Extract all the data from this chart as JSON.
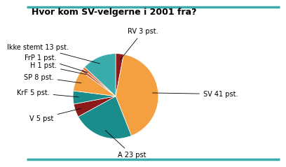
{
  "title": "Hvor kom SV-velgerne i 2001 fra?",
  "slices_ordered": [
    {
      "label": "RV 3 pst.",
      "value": 3,
      "color": "#8B1A1A"
    },
    {
      "label": "SV 41 pst.",
      "value": 41,
      "color": "#F5A040"
    },
    {
      "label": "A 23 pst",
      "value": 23,
      "color": "#1A8C8C"
    },
    {
      "label": "V 5 pst",
      "value": 5,
      "color": "#8B1A1A"
    },
    {
      "label": "KrF 5 pst.",
      "value": 5,
      "color": "#1A8C8C"
    },
    {
      "label": "SP 8 pst.",
      "value": 8,
      "color": "#F5A040"
    },
    {
      "label": "H 1 pst.",
      "value": 1,
      "color": "#CC5533"
    },
    {
      "label": "FrP 1 pst.",
      "value": 1,
      "color": "#E87040"
    },
    {
      "label": "Ikke stemt 13 pst.",
      "value": 13,
      "color": "#3AACAC"
    }
  ],
  "background_color": "#FFFFFF",
  "border_color": "#3AACAC",
  "title_fontsize": 9,
  "label_fontsize": 7,
  "label_positions": {
    "RV 3 pst.": [
      0.28,
      1.52,
      "left"
    ],
    "SV 41 pst.": [
      2.05,
      0.05,
      "left"
    ],
    "A 23 pst": [
      0.05,
      -1.38,
      "left"
    ],
    "V 5 pst": [
      -1.45,
      -0.52,
      "right"
    ],
    "KrF 5 pst.": [
      -1.55,
      0.08,
      "right"
    ],
    "SP 8 pst.": [
      -1.45,
      0.45,
      "right"
    ],
    "H 1 pst.": [
      -1.38,
      0.72,
      "right"
    ],
    "FrP 1 pst.": [
      -1.38,
      0.9,
      "right"
    ],
    "Ikke stemt 13 pst.": [
      -1.1,
      1.15,
      "right"
    ]
  }
}
